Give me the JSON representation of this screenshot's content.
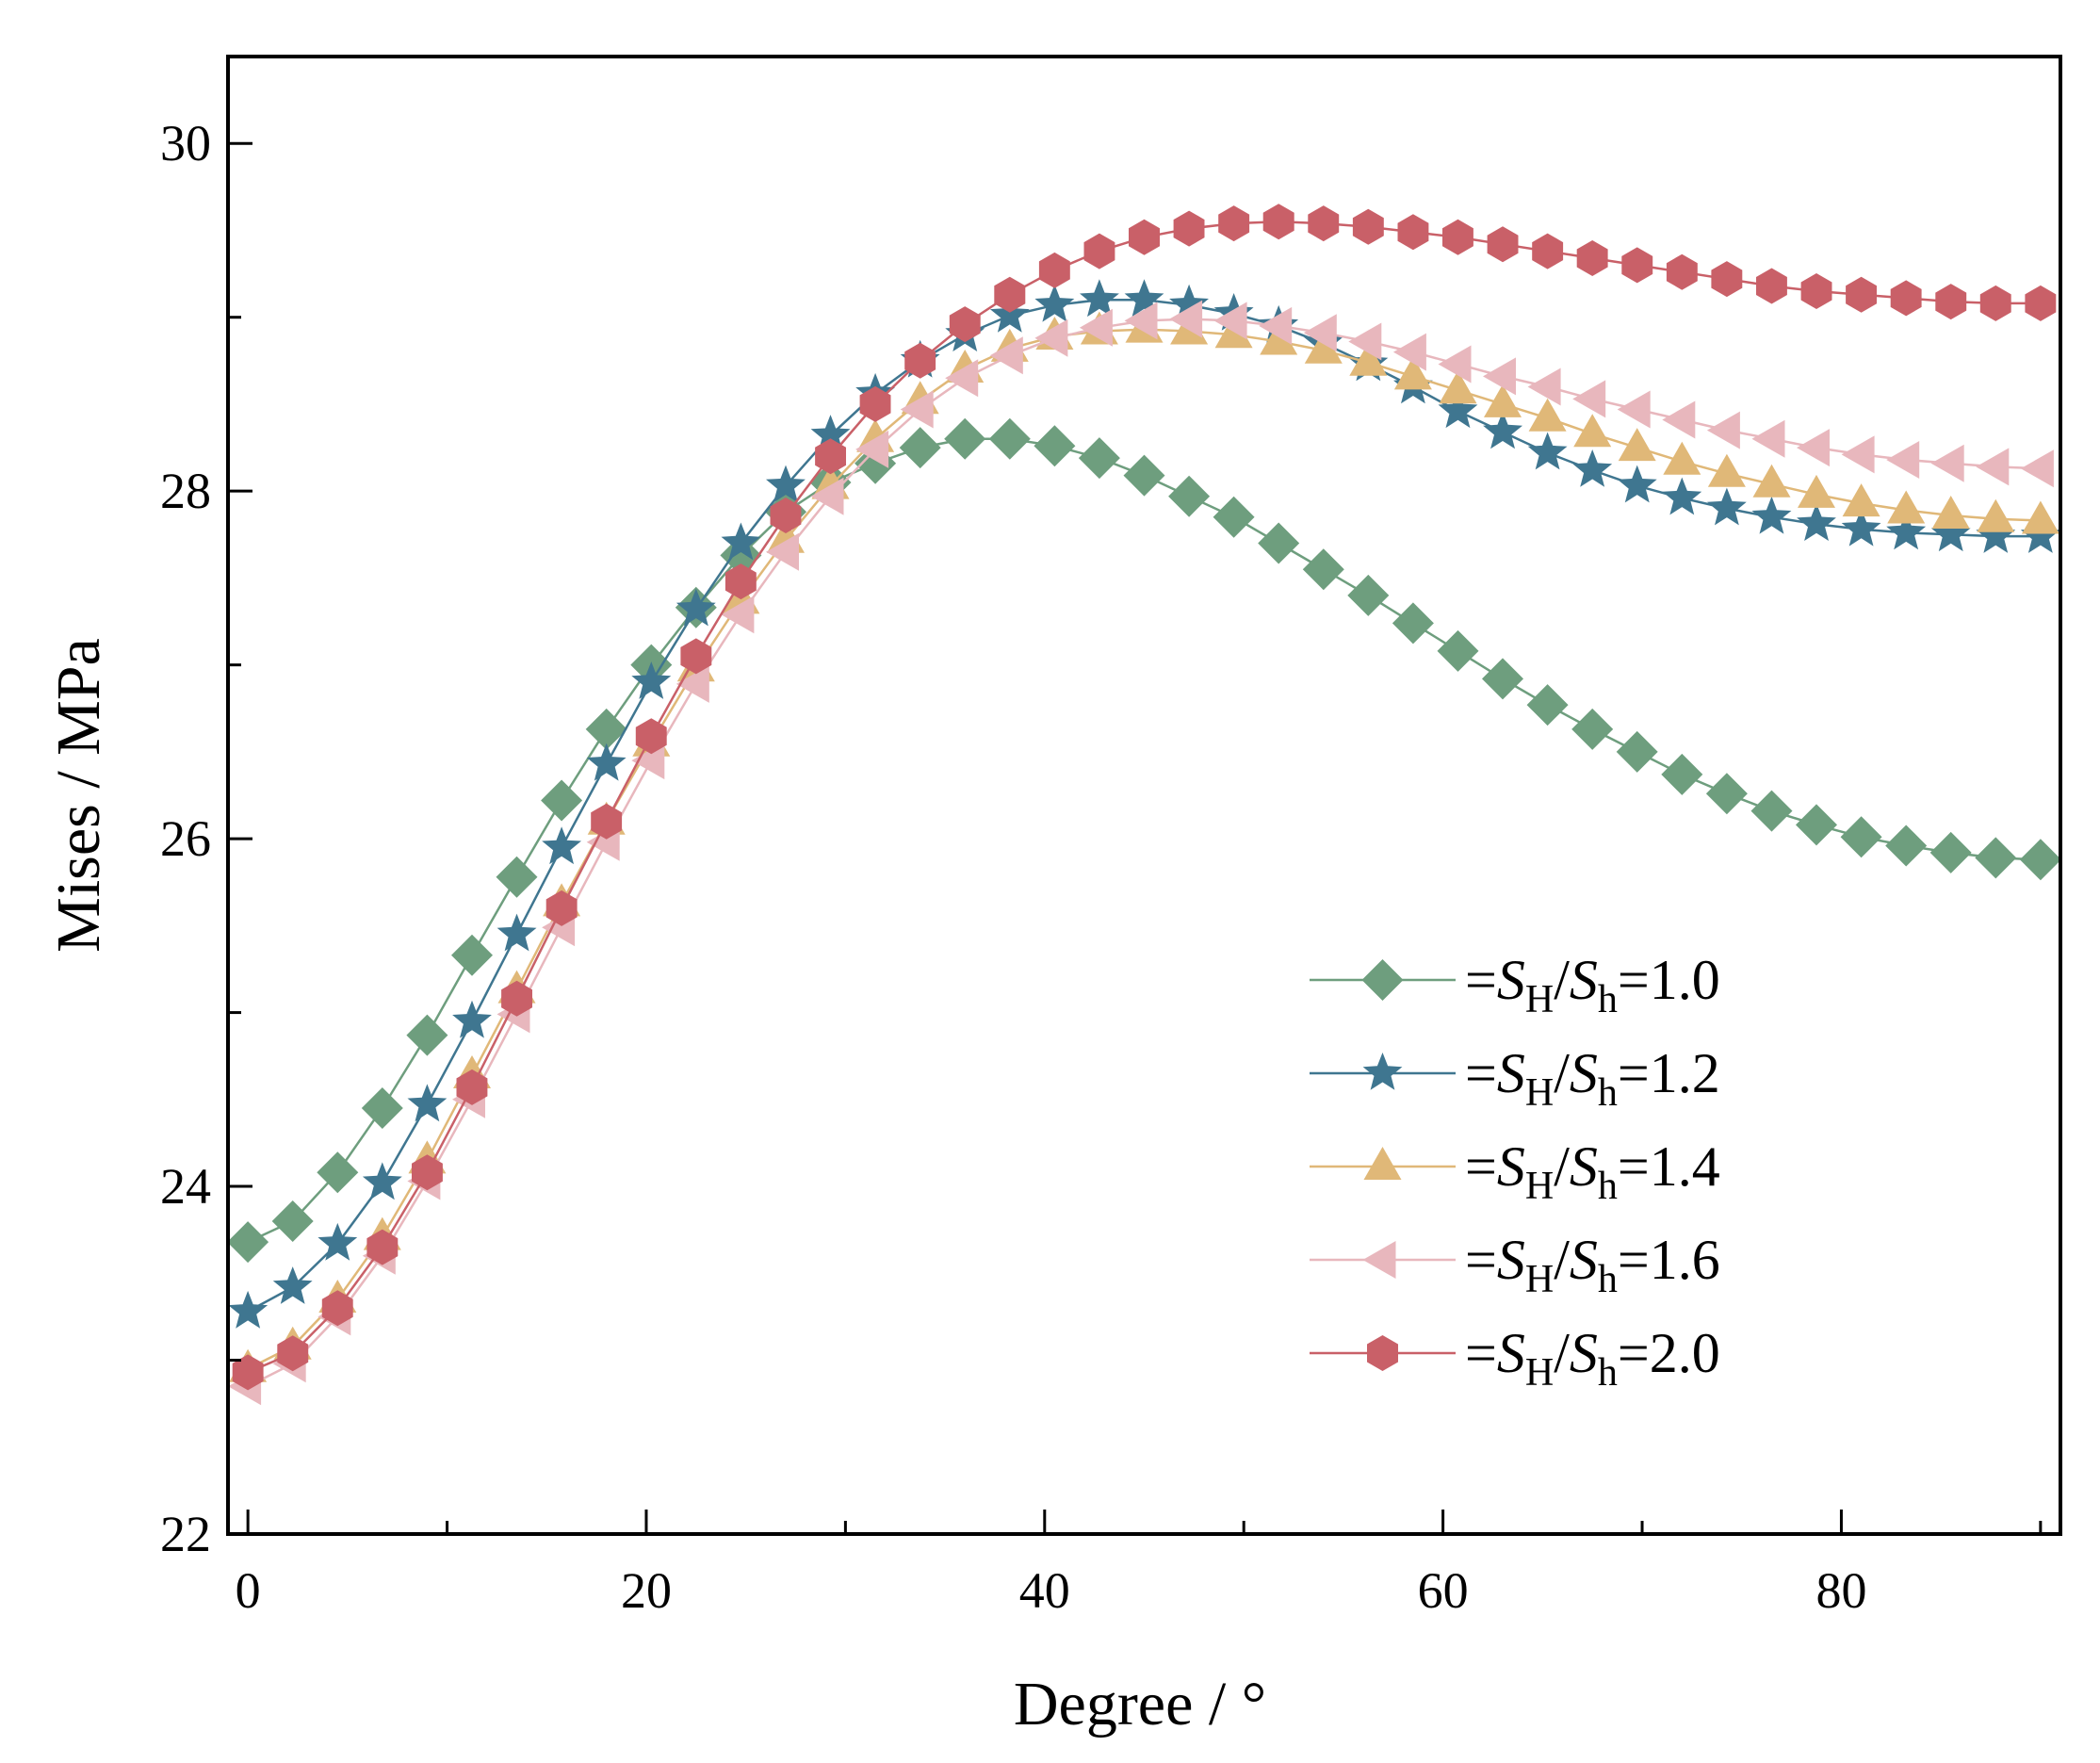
{
  "chart_data": {
    "type": "line",
    "xlabel": "Degree / °",
    "ylabel": "Mises / MPa",
    "xlim": [
      -1,
      91
    ],
    "ylim": [
      22,
      30.5
    ],
    "x_ticks": [
      "0",
      "20",
      "40",
      "60",
      "80"
    ],
    "y_ticks": [
      "22",
      "24",
      "26",
      "28",
      "30"
    ],
    "legend_position": "bottom-right",
    "x": [
      0,
      2.25,
      4.5,
      6.75,
      9,
      11.25,
      13.5,
      15.75,
      18,
      20.25,
      22.5,
      24.75,
      27,
      29.25,
      31.5,
      33.75,
      36,
      38.25,
      40.5,
      42.75,
      45,
      47.25,
      49.5,
      51.75,
      54,
      56.25,
      58.5,
      60.75,
      63,
      65.25,
      67.5,
      69.75,
      72,
      74.25,
      76.5,
      78.75,
      81,
      83.25,
      85.5,
      87.75,
      90
    ],
    "series": [
      {
        "name": "=SH/Sh=1.0",
        "legend_parts": {
          "prefix": "=",
          "s1": "S",
          "sub1": "H",
          "slash": "/",
          "s2": "S",
          "sub2": "h",
          "value": "=1.0"
        },
        "color": "#6e9e7e",
        "marker": "diamond",
        "values": [
          23.68,
          23.8,
          24.08,
          24.45,
          24.87,
          25.33,
          25.78,
          26.22,
          26.63,
          27.0,
          27.33,
          27.63,
          27.88,
          28.05,
          28.16,
          28.25,
          28.3,
          28.3,
          28.26,
          28.19,
          28.09,
          27.97,
          27.85,
          27.7,
          27.55,
          27.4,
          27.24,
          27.08,
          26.92,
          26.77,
          26.63,
          26.5,
          26.37,
          26.26,
          26.16,
          26.08,
          26.01,
          25.96,
          25.92,
          25.89,
          25.88
        ]
      },
      {
        "name": "=SH/Sh=1.2",
        "legend_parts": {
          "prefix": "=",
          "s1": "S",
          "sub1": "H",
          "slash": "/",
          "s2": "S",
          "sub2": "h",
          "value": "=1.2"
        },
        "color": "#3f7690",
        "marker": "star",
        "values": [
          23.28,
          23.42,
          23.67,
          24.02,
          24.47,
          24.95,
          25.45,
          25.95,
          26.43,
          26.9,
          27.32,
          27.7,
          28.03,
          28.32,
          28.56,
          28.75,
          28.9,
          29.01,
          29.07,
          29.1,
          29.1,
          29.07,
          29.02,
          28.95,
          28.85,
          28.73,
          28.6,
          28.46,
          28.34,
          28.22,
          28.12,
          28.03,
          27.96,
          27.9,
          27.85,
          27.81,
          27.78,
          27.76,
          27.75,
          27.74,
          27.74
        ]
      },
      {
        "name": "=SH/Sh=1.4",
        "legend_parts": {
          "prefix": "=",
          "s1": "S",
          "sub1": "H",
          "slash": "/",
          "s2": "S",
          "sub2": "h",
          "value": "=1.4"
        },
        "color": "#e0b878",
        "marker": "triangle-up",
        "values": [
          22.95,
          23.08,
          23.35,
          23.71,
          24.15,
          24.64,
          25.13,
          25.63,
          26.1,
          26.55,
          26.98,
          27.37,
          27.72,
          28.03,
          28.3,
          28.52,
          28.7,
          28.82,
          28.89,
          28.92,
          28.93,
          28.92,
          28.9,
          28.86,
          28.81,
          28.74,
          28.66,
          28.58,
          28.5,
          28.42,
          28.33,
          28.25,
          28.17,
          28.1,
          28.04,
          27.98,
          27.93,
          27.89,
          27.86,
          27.84,
          27.83
        ]
      },
      {
        "name": "=SH/Sh=1.6",
        "legend_parts": {
          "prefix": "=",
          "s1": "S",
          "sub1": "H",
          "slash": "/",
          "s2": "S",
          "sub2": "h",
          "value": "=1.6"
        },
        "color": "#e8b7bd",
        "marker": "triangle-left",
        "values": [
          22.85,
          22.98,
          23.25,
          23.6,
          24.03,
          24.5,
          24.99,
          25.49,
          25.98,
          26.45,
          26.89,
          27.29,
          27.65,
          27.97,
          28.24,
          28.47,
          28.65,
          28.78,
          28.88,
          28.94,
          28.98,
          28.99,
          28.98,
          28.95,
          28.91,
          28.86,
          28.8,
          28.73,
          28.66,
          28.6,
          28.53,
          28.47,
          28.41,
          28.35,
          28.3,
          28.25,
          28.21,
          28.18,
          28.16,
          28.14,
          28.13
        ]
      },
      {
        "name": "=SH/Sh=2.0",
        "legend_parts": {
          "prefix": "=",
          "s1": "S",
          "sub1": "H",
          "slash": "/",
          "s2": "S",
          "sub2": "h",
          "value": "=2.0"
        },
        "color": "#c96068",
        "marker": "hexagon",
        "values": [
          22.93,
          23.04,
          23.3,
          23.65,
          24.08,
          24.57,
          25.08,
          25.6,
          26.1,
          26.59,
          27.05,
          27.48,
          27.86,
          28.2,
          28.5,
          28.75,
          28.96,
          29.13,
          29.27,
          29.38,
          29.46,
          29.51,
          29.54,
          29.55,
          29.54,
          29.52,
          29.49,
          29.46,
          29.42,
          29.38,
          29.34,
          29.3,
          29.26,
          29.22,
          29.18,
          29.15,
          29.13,
          29.11,
          29.09,
          29.08,
          29.08
        ]
      }
    ]
  }
}
